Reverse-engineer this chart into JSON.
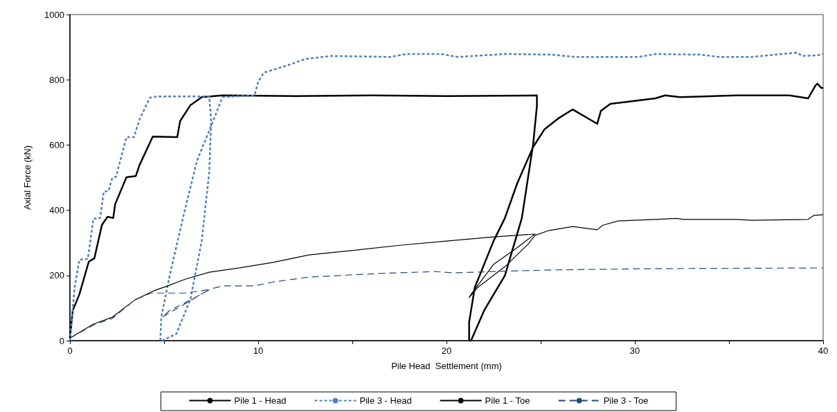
{
  "chart_data": {
    "type": "line",
    "xlabel": "Pile Head  Settlement (mm)",
    "ylabel": "Axial Force (kN)",
    "xlim": [
      0,
      40
    ],
    "ylim": [
      0,
      1000
    ],
    "xticks": [
      0,
      {
        "value": 5,
        "label": null
      },
      10,
      {
        "value": 15,
        "label": null
      },
      20,
      {
        "value": 25,
        "label": null
      },
      30,
      {
        "value": 35,
        "label": null
      },
      40
    ],
    "yticks": [
      0,
      200,
      400,
      600,
      800,
      1000
    ],
    "grid": false,
    "legend": "bottom",
    "marker": "none",
    "series": [
      {
        "name": "Pile 1 - Head",
        "color": "#000000",
        "line_style": "solid",
        "x": [
          0,
          0.15,
          0.5,
          1.0,
          1.3,
          1.7,
          2.0,
          2.3,
          2.4,
          3.0,
          3.5,
          3.7,
          4.4,
          5.7,
          5.85,
          6.4,
          7.0,
          8.1,
          12,
          16,
          20,
          24.8,
          24.8,
          24.6,
          24.0,
          23.1,
          22.0,
          21.3,
          21.2,
          21.2,
          21.5,
          22.5,
          23.1,
          23.75,
          24.6,
          25.2,
          26.0,
          26.7,
          28.0,
          28.2,
          28.7,
          31.1,
          31.6,
          32.4,
          35.4,
          38.2,
          39.2,
          39.6,
          39.7,
          39.9,
          40.0
        ],
        "values": [
          8,
          93,
          142,
          242,
          253,
          355,
          380,
          376,
          418,
          501,
          505,
          539,
          626,
          624,
          673,
          722,
          747,
          752,
          750,
          752,
          750,
          752,
          720,
          603,
          376,
          200,
          93,
          0,
          0,
          57,
          163,
          306,
          376,
          482,
          594,
          648,
          684,
          709,
          665,
          705,
          726,
          743,
          752,
          747,
          752,
          752,
          743,
          783,
          788,
          775,
          775
        ]
      },
      {
        "name": "Pile 3 - Head",
        "color": "#4f81bd",
        "line_style": "dashed",
        "x": [
          0,
          0.03,
          0.25,
          0.5,
          0.95,
          1.25,
          1.6,
          1.8,
          2.05,
          2.25,
          2.45,
          3.0,
          3.4,
          3.7,
          4.25,
          4.65,
          7.4,
          7.5,
          7.4,
          7.0,
          6.4,
          5.65,
          4.9,
          4.8,
          4.85,
          5.3,
          6.0,
          6.75,
          7.5,
          8.1,
          9.8,
          10.0,
          10.3,
          11.5,
          12.5,
          13.9,
          17.0,
          17.9,
          19.7,
          20.6,
          23.1,
          25.6,
          26.8,
          30.2,
          31.1,
          33.5,
          34.5,
          36.2,
          37.8,
          38.6,
          38.9,
          39.7,
          40.0
        ],
        "values": [
          0,
          21,
          163,
          248,
          251,
          374,
          376,
          457,
          459,
          499,
          503,
          624,
          624,
          679,
          745,
          749,
          749,
          673,
          518,
          306,
          127,
          21,
          0,
          0,
          72,
          200,
          376,
          552,
          658,
          747,
          752,
          794,
          822,
          843,
          864,
          873,
          870,
          879,
          879,
          870,
          879,
          877,
          870,
          870,
          879,
          877,
          870,
          870,
          879,
          883,
          873,
          875,
          879
        ]
      },
      {
        "name": "Pile 1 - Toe",
        "color": "#000000",
        "line_style": "solid",
        "x": [
          0,
          1.25,
          2.25,
          3.45,
          4.45,
          5.2,
          6.15,
          7.4,
          9.0,
          10.8,
          12.7,
          15.2,
          17.6,
          20.1,
          22.5,
          24.7,
          24.6,
          23.75,
          22.5,
          21.3,
          21.2,
          21.65,
          23.1,
          24.35,
          24.7,
          25.45,
          26.7,
          28.0,
          28.3,
          29.1,
          31.1,
          32.2,
          32.6,
          35.4,
          36.2,
          39.2,
          39.5,
          40.0
        ],
        "values": [
          8,
          51,
          72,
          125,
          153,
          168,
          189,
          210,
          223,
          240,
          263,
          278,
          293,
          306,
          318,
          327,
          323,
          285,
          234,
          142,
          132,
          163,
          227,
          297,
          323,
          338,
          350,
          340,
          354,
          367,
          372,
          375,
          372,
          372,
          369,
          372,
          384,
          386
        ]
      },
      {
        "name": "Pile 3 - Toe",
        "color": "#1f497d",
        "line_style": "dashed",
        "x": [
          0,
          1.35,
          2.25,
          3.45,
          4.3,
          6.15,
          7.4,
          4.9,
          5.3,
          6.15,
          7.5,
          8.1,
          9.8,
          10.8,
          12.7,
          16.4,
          19.4,
          20.3,
          22.5,
          25.6,
          31.2,
          40.0
        ],
        "values": [
          8,
          51,
          68,
          125,
          146,
          146,
          157,
          72,
          93,
          117,
          159,
          168,
          168,
          180,
          195,
          206,
          212,
          208,
          212,
          217,
          221,
          223
        ]
      }
    ]
  }
}
